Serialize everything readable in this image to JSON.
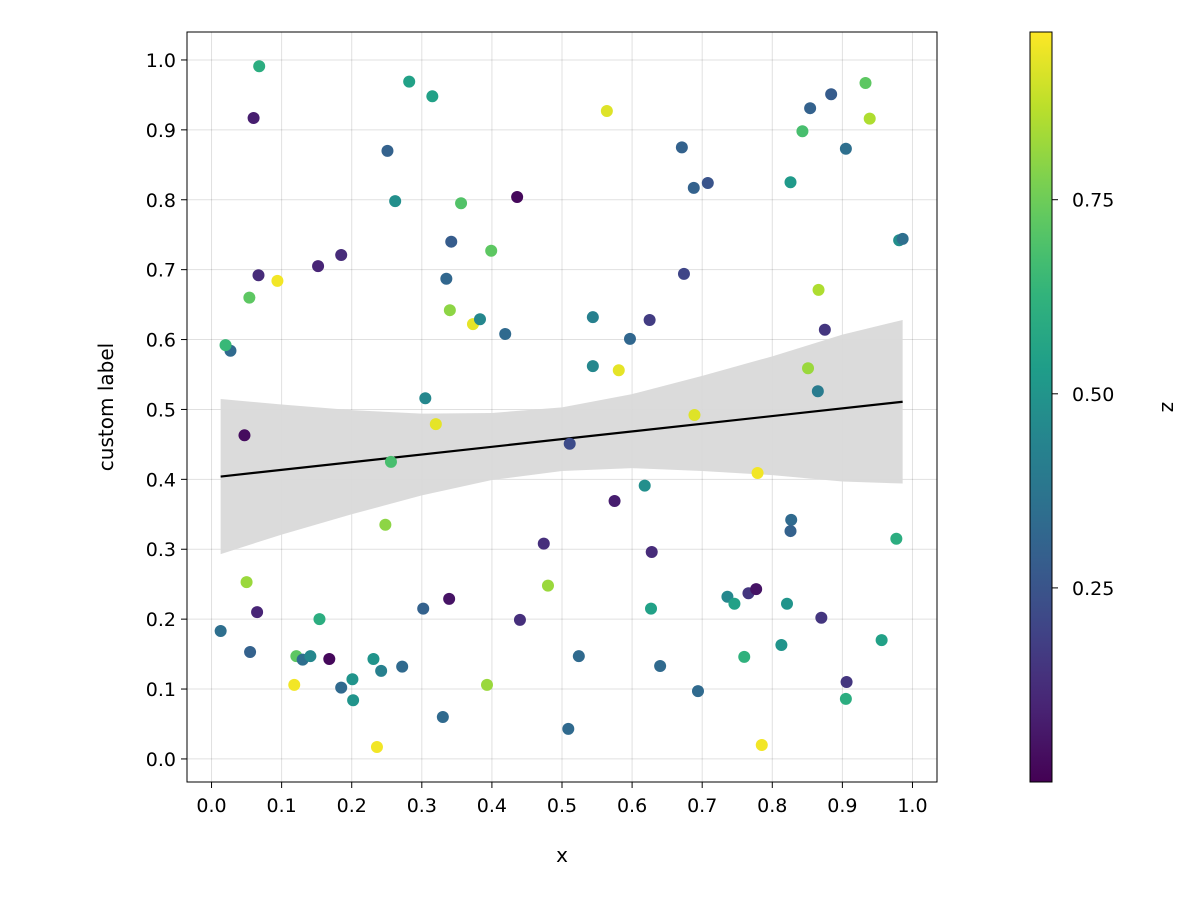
{
  "chart_data": {
    "type": "scatter",
    "title": "",
    "xlabel": "x",
    "ylabel": "custom label",
    "xlim": [
      -0.035,
      1.035
    ],
    "ylim": [
      -0.033,
      1.04
    ],
    "xticks": [
      "0.0",
      "0.1",
      "0.2",
      "0.3",
      "0.4",
      "0.5",
      "0.6",
      "0.7",
      "0.8",
      "0.9",
      "1.0"
    ],
    "yticks": [
      "0.0",
      "0.1",
      "0.2",
      "0.3",
      "0.4",
      "0.5",
      "0.6",
      "0.7",
      "0.8",
      "0.9",
      "1.0"
    ],
    "grid": true,
    "colormap": "viridis",
    "colorbar": {
      "label": "z",
      "range": [
        0.0,
        0.966
      ],
      "ticks": [
        "0.25",
        "0.50",
        "0.75"
      ],
      "tick_values": [
        0.25,
        0.5,
        0.75
      ]
    },
    "points": [
      [
        0.013,
        0.183,
        0.35
      ],
      [
        0.055,
        0.153,
        0.3
      ],
      [
        0.065,
        0.21,
        0.1
      ],
      [
        0.05,
        0.253,
        0.82
      ],
      [
        0.047,
        0.463,
        0.03
      ],
      [
        0.027,
        0.584,
        0.33
      ],
      [
        0.054,
        0.66,
        0.72
      ],
      [
        0.067,
        0.692,
        0.12
      ],
      [
        0.094,
        0.684,
        0.95
      ],
      [
        0.02,
        0.592,
        0.65
      ],
      [
        0.068,
        0.991,
        0.6
      ],
      [
        0.06,
        0.917,
        0.08
      ],
      [
        0.118,
        0.106,
        0.95
      ],
      [
        0.121,
        0.147,
        0.72
      ],
      [
        0.13,
        0.142,
        0.35
      ],
      [
        0.141,
        0.147,
        0.45
      ],
      [
        0.168,
        0.143,
        0.02
      ],
      [
        0.154,
        0.2,
        0.6
      ],
      [
        0.185,
        0.102,
        0.33
      ],
      [
        0.201,
        0.114,
        0.5
      ],
      [
        0.202,
        0.084,
        0.5
      ],
      [
        0.231,
        0.143,
        0.5
      ],
      [
        0.242,
        0.126,
        0.42
      ],
      [
        0.236,
        0.017,
        0.95
      ],
      [
        0.248,
        0.335,
        0.8
      ],
      [
        0.256,
        0.425,
        0.68
      ],
      [
        0.272,
        0.132,
        0.33
      ],
      [
        0.302,
        0.215,
        0.3
      ],
      [
        0.33,
        0.06,
        0.33
      ],
      [
        0.339,
        0.229,
        0.05
      ],
      [
        0.393,
        0.106,
        0.82
      ],
      [
        0.305,
        0.516,
        0.45
      ],
      [
        0.32,
        0.479,
        0.93
      ],
      [
        0.251,
        0.87,
        0.3
      ],
      [
        0.262,
        0.798,
        0.48
      ],
      [
        0.282,
        0.969,
        0.55
      ],
      [
        0.315,
        0.948,
        0.55
      ],
      [
        0.152,
        0.705,
        0.1
      ],
      [
        0.185,
        0.721,
        0.12
      ],
      [
        0.335,
        0.687,
        0.32
      ],
      [
        0.342,
        0.74,
        0.28
      ],
      [
        0.34,
        0.642,
        0.8
      ],
      [
        0.373,
        0.622,
        0.93
      ],
      [
        0.383,
        0.629,
        0.45
      ],
      [
        0.356,
        0.795,
        0.7
      ],
      [
        0.399,
        0.727,
        0.72
      ],
      [
        0.419,
        0.608,
        0.33
      ],
      [
        0.436,
        0.804,
        0.02
      ],
      [
        0.474,
        0.308,
        0.13
      ],
      [
        0.48,
        0.248,
        0.82
      ],
      [
        0.44,
        0.199,
        0.13
      ],
      [
        0.509,
        0.043,
        0.33
      ],
      [
        0.524,
        0.147,
        0.33
      ],
      [
        0.511,
        0.451,
        0.22
      ],
      [
        0.544,
        0.632,
        0.42
      ],
      [
        0.544,
        0.562,
        0.45
      ],
      [
        0.564,
        0.927,
        0.92
      ],
      [
        0.581,
        0.556,
        0.93
      ],
      [
        0.597,
        0.601,
        0.32
      ],
      [
        0.575,
        0.369,
        0.08
      ],
      [
        0.618,
        0.391,
        0.48
      ],
      [
        0.625,
        0.628,
        0.17
      ],
      [
        0.628,
        0.296,
        0.12
      ],
      [
        0.627,
        0.215,
        0.55
      ],
      [
        0.64,
        0.133,
        0.33
      ],
      [
        0.671,
        0.875,
        0.3
      ],
      [
        0.688,
        0.817,
        0.3
      ],
      [
        0.708,
        0.824,
        0.25
      ],
      [
        0.674,
        0.694,
        0.2
      ],
      [
        0.689,
        0.492,
        0.92
      ],
      [
        0.694,
        0.097,
        0.33
      ],
      [
        0.736,
        0.232,
        0.45
      ],
      [
        0.746,
        0.222,
        0.55
      ],
      [
        0.76,
        0.146,
        0.62
      ],
      [
        0.766,
        0.237,
        0.15
      ],
      [
        0.777,
        0.243,
        0.05
      ],
      [
        0.779,
        0.409,
        0.95
      ],
      [
        0.785,
        0.02,
        0.95
      ],
      [
        0.813,
        0.163,
        0.5
      ],
      [
        0.821,
        0.222,
        0.5
      ],
      [
        0.826,
        0.825,
        0.52
      ],
      [
        0.827,
        0.342,
        0.33
      ],
      [
        0.826,
        0.326,
        0.3
      ],
      [
        0.843,
        0.898,
        0.68
      ],
      [
        0.854,
        0.931,
        0.3
      ],
      [
        0.851,
        0.559,
        0.82
      ],
      [
        0.865,
        0.526,
        0.4
      ],
      [
        0.866,
        0.671,
        0.85
      ],
      [
        0.87,
        0.202,
        0.15
      ],
      [
        0.875,
        0.614,
        0.15
      ],
      [
        0.884,
        0.951,
        0.28
      ],
      [
        0.905,
        0.873,
        0.35
      ],
      [
        0.906,
        0.11,
        0.15
      ],
      [
        0.905,
        0.086,
        0.6
      ],
      [
        0.933,
        0.967,
        0.72
      ],
      [
        0.939,
        0.916,
        0.85
      ],
      [
        0.956,
        0.17,
        0.55
      ],
      [
        0.977,
        0.315,
        0.6
      ],
      [
        0.981,
        0.742,
        0.48
      ],
      [
        0.986,
        0.744,
        0.35
      ]
    ],
    "fit_line": {
      "x": [
        0.013,
        0.986
      ],
      "y": [
        0.404,
        0.511
      ],
      "color": "#000000"
    },
    "confidence_band": {
      "x": [
        0.013,
        0.1,
        0.2,
        0.3,
        0.4,
        0.5,
        0.6,
        0.7,
        0.8,
        0.9,
        0.986
      ],
      "lower": [
        0.293,
        0.321,
        0.35,
        0.377,
        0.399,
        0.412,
        0.416,
        0.412,
        0.406,
        0.397,
        0.394
      ],
      "upper": [
        0.515,
        0.507,
        0.499,
        0.494,
        0.495,
        0.503,
        0.522,
        0.548,
        0.576,
        0.607,
        0.628
      ],
      "color": "#d9d9d9"
    }
  }
}
